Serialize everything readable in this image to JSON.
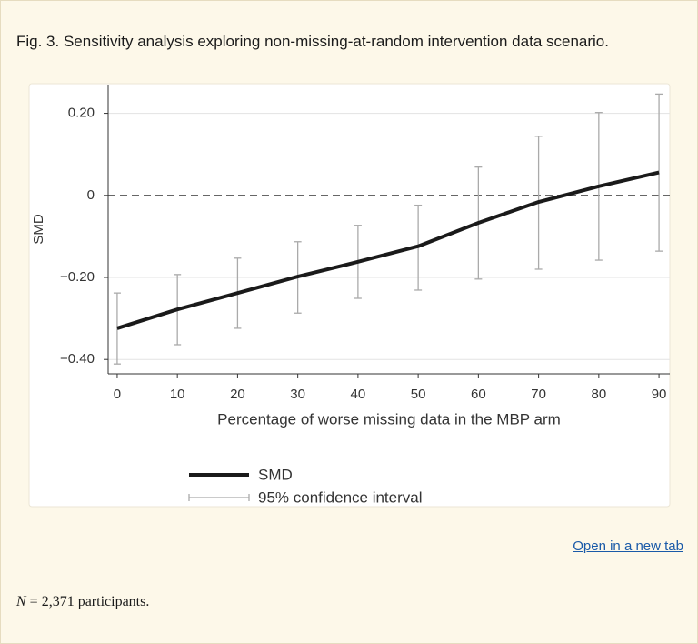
{
  "caption": "Fig. 3. Sensitivity analysis exploring non-missing-at-random intervention data scenario.",
  "chart_data": {
    "type": "line",
    "x_label": "Percentage of worse missing data in the MBP arm",
    "y_label": "SMD",
    "x": [
      0,
      10,
      20,
      30,
      40,
      50,
      60,
      70,
      80,
      90
    ],
    "series": [
      {
        "name": "SMD",
        "color": "#1a1a1a",
        "values": [
          -0.324,
          -0.278,
          -0.238,
          -0.198,
          -0.162,
          -0.124,
          -0.067,
          -0.016,
          0.022,
          0.056
        ]
      }
    ],
    "error_bars": {
      "name": "95% confidence interval",
      "color": "#aaaaaa",
      "lower": [
        -0.411,
        -0.364,
        -0.324,
        -0.287,
        -0.251,
        -0.231,
        -0.204,
        -0.18,
        -0.158,
        -0.136
      ],
      "upper": [
        -0.238,
        -0.193,
        -0.153,
        -0.113,
        -0.073,
        -0.024,
        0.069,
        0.144,
        0.202,
        0.247
      ]
    },
    "xlim": [
      -1.5,
      91.8
    ],
    "xticks": [
      0,
      10,
      20,
      30,
      40,
      50,
      60,
      70,
      80,
      90
    ],
    "ylim": [
      -0.435,
      0.27
    ],
    "yticks": [
      {
        "value": 0.2,
        "label": "0.20"
      },
      0,
      {
        "value": -0.2,
        "label": "−0.20"
      },
      {
        "value": -0.4,
        "label": "−0.40"
      }
    ],
    "grid": true
  },
  "link": "Open in a new tab",
  "footnote_var": "N",
  "footnote_text": "= 2,371 participants."
}
